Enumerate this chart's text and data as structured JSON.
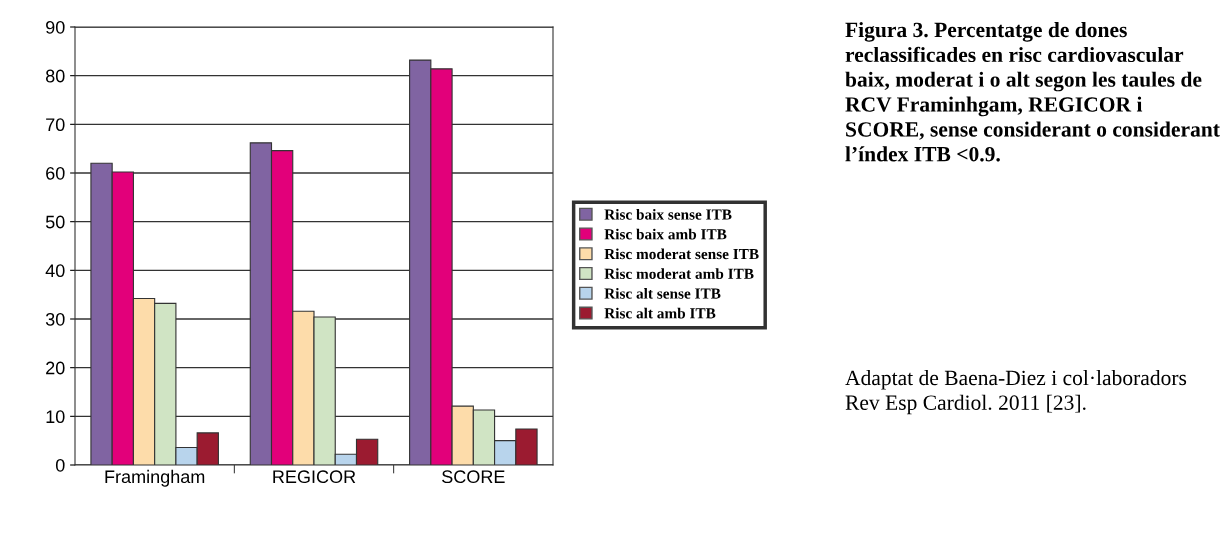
{
  "chart_data": {
    "type": "bar",
    "title": "Figura 3. Percentatge de dones reclassificades en risc cardiovascular baix, moderat i o alt segon les taules de RCV Framinhgam, REGICOR i SCORE, sense considerant o considerant l’índex ITB <0.9.",
    "annotations": [
      "Adaptat de Baena-Diez i col·laboradors Rev Esp Cardiol. 2011 [23]."
    ],
    "categories": [
      "Framingham",
      "REGICOR",
      "SCORE"
    ],
    "series": [
      {
        "name": "Risc baix sense ITB",
        "color": "#8064a2",
        "values": [
          62,
          66.2,
          83.2
        ]
      },
      {
        "name": "Risc baix amb ITB",
        "color": "#e2007a",
        "values": [
          60.2,
          64.6,
          81.4
        ]
      },
      {
        "name": "Risc moderat sense ITB",
        "color": "#fddcaa",
        "values": [
          34.2,
          31.6,
          12.1
        ]
      },
      {
        "name": "Risc moderat amb ITB",
        "color": "#d0e4c4",
        "values": [
          33.2,
          30.4,
          11.3
        ]
      },
      {
        "name": "Risc alt sense ITB",
        "color": "#b8d4ec",
        "values": [
          3.6,
          2.2,
          5
        ]
      },
      {
        "name": "Risc alt amb ITB",
        "color": "#9b1b30",
        "values": [
          6.6,
          5.3,
          7.4
        ]
      }
    ],
    "ylim": [
      0,
      90
    ],
    "yticks": [
      0,
      10,
      20,
      30,
      40,
      50,
      60,
      70,
      80,
      90
    ],
    "grid": "y",
    "legend": "right"
  }
}
